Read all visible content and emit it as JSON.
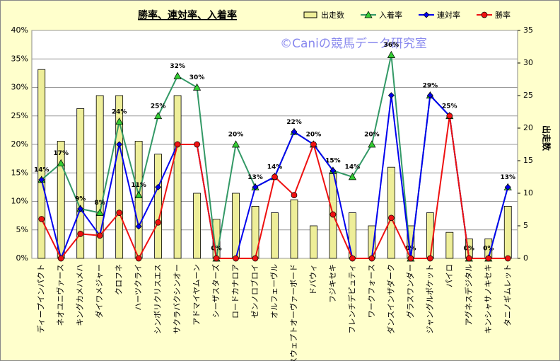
{
  "chart_data": {
    "type": "bar",
    "title": "勝率、連対率、入着率",
    "watermark": "©Caniの競馬データ研究室",
    "y2_label": "出走数",
    "categories": [
      "ディープインパクト",
      "ネオユニヴァース",
      "キングカメハメハ",
      "ダイワメジャー",
      "クロフネ",
      "ハーツクライ",
      "シンボリクリスエス",
      "サクラバクシンオー",
      "アドマイヤムーン",
      "シーザスターズ",
      "ロードカナロア",
      "ゼンノロブロイ",
      "オルフェーヴル",
      "スウェプトオーヴァーボード",
      "ドバウィ",
      "フジキセキ",
      "フレンチデピュティ",
      "ワークフォース",
      "ダンスインザダーク",
      "グラスワンダー",
      "ジャングルポケット",
      "パイロ",
      "アグネスデジタル",
      "キンシャサノキセキ",
      "タニノギムレット"
    ],
    "ylim": [
      0,
      40
    ],
    "yticks": [
      {
        "value": 0,
        "label": "0%"
      },
      {
        "value": 5,
        "label": "5%"
      },
      {
        "value": 10,
        "label": "10%"
      },
      {
        "value": 15,
        "label": "15%"
      },
      {
        "value": 20,
        "label": "20%"
      },
      {
        "value": 25,
        "label": "25%"
      },
      {
        "value": 30,
        "label": "30%"
      },
      {
        "value": 35,
        "label": "35%"
      },
      {
        "value": 40,
        "label": "40%"
      }
    ],
    "y2lim": [
      0,
      35
    ],
    "y2ticks": [
      0,
      5,
      10,
      15,
      20,
      25,
      30,
      35
    ],
    "grid": true,
    "series": [
      {
        "name": "出走数",
        "type": "bar",
        "axis": "y2",
        "color": "#eeee99",
        "values": [
          29,
          18,
          23,
          25,
          25,
          18,
          16,
          25,
          10,
          6,
          10,
          8,
          7,
          9,
          5,
          13,
          7,
          5,
          14,
          5,
          7,
          4,
          3,
          3,
          8
        ]
      },
      {
        "name": "入着率",
        "type": "line",
        "marker": "triangle",
        "color": "#339966",
        "values": [
          13.8,
          16.7,
          8.7,
          8,
          24,
          11.1,
          25,
          32,
          30,
          0,
          20,
          12.5,
          14.3,
          22.2,
          20,
          15.4,
          14.3,
          20,
          35.7,
          0,
          28.6,
          25,
          0,
          0,
          12.5
        ],
        "value_labels": [
          "14%",
          "17%",
          "9%",
          "8%",
          "24%",
          "11%",
          "25%",
          "32%",
          "30%",
          "0%",
          "20%",
          "13%",
          "14%",
          "22%",
          "20%",
          "15%",
          "14%",
          "20%",
          "36%",
          "0%",
          "29%",
          "25%",
          "0%",
          "0%",
          "13%"
        ]
      },
      {
        "name": "連対率",
        "type": "line",
        "marker": "diamond",
        "color": "#0000ee",
        "values": [
          13.8,
          0,
          8.7,
          4,
          20,
          5.6,
          12.5,
          20,
          20,
          0,
          0,
          12.5,
          14.3,
          22.2,
          20,
          15.4,
          0,
          0,
          28.6,
          0,
          28.6,
          25,
          0,
          0,
          12.5
        ]
      },
      {
        "name": "勝率",
        "type": "line",
        "marker": "circle",
        "color": "#ee1111",
        "values": [
          6.9,
          0,
          4.3,
          4,
          8,
          0,
          6.3,
          20,
          20,
          0,
          0,
          0,
          14.3,
          11.1,
          20,
          7.7,
          0,
          0,
          7.1,
          0,
          0,
          25,
          0,
          0,
          0
        ]
      }
    ]
  }
}
